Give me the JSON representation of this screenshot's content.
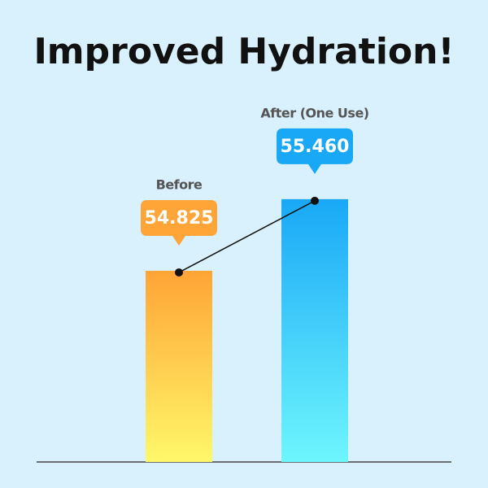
{
  "chart_data": {
    "type": "bar",
    "title": "Improved Hydration!",
    "categories": [
      "Before",
      "After (One Use)"
    ],
    "values": [
      54.825,
      55.46
    ],
    "value_labels": [
      "54.825",
      "55.460"
    ],
    "colors": [
      "#ffa436",
      "#19a8f6"
    ],
    "gradient_end_colors": [
      "#fff86a",
      "#6ef6fd"
    ],
    "ylim": [
      53.13,
      56
    ],
    "connector": true
  }
}
